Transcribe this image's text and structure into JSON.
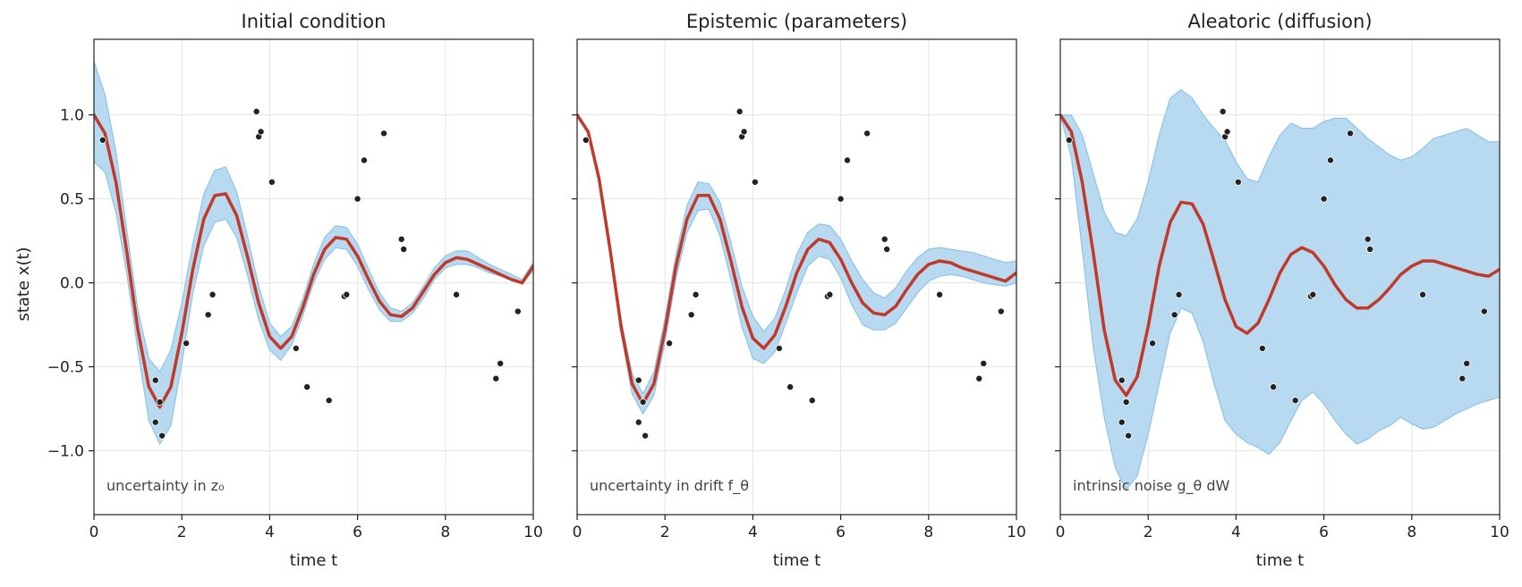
{
  "figure": {
    "ylabel": "state x(t)",
    "band_color": "#b8daf0",
    "band_edge_color": "#8ec3e8",
    "mean_color": "#c0392b",
    "point_color": "#222222"
  },
  "chart_data": [
    {
      "type": "line",
      "title": "Initial condition",
      "xlabel": "time t",
      "ylabel": "state x(t)",
      "xlim": [
        0,
        10
      ],
      "ylim": [
        -1.38,
        1.45
      ],
      "xticks": [
        0,
        2,
        4,
        6,
        8,
        10
      ],
      "yticks": [
        -1.0,
        -0.5,
        0.0,
        0.5,
        1.0
      ],
      "grid": true,
      "annotation": "uncertainty in z₀",
      "series": [
        {
          "kind": "mean",
          "x": [
            0,
            0.25,
            0.5,
            0.75,
            1,
            1.25,
            1.5,
            1.75,
            2,
            2.25,
            2.5,
            2.75,
            3,
            3.25,
            3.5,
            3.75,
            4,
            4.25,
            4.5,
            4.75,
            5,
            5.25,
            5.5,
            5.75,
            6,
            6.25,
            6.5,
            6.75,
            7,
            7.25,
            7.5,
            7.75,
            8,
            8.25,
            8.5,
            8.75,
            9,
            9.25,
            9.5,
            9.75,
            10
          ],
          "y": [
            1.0,
            0.89,
            0.6,
            0.18,
            -0.28,
            -0.62,
            -0.74,
            -0.62,
            -0.3,
            0.08,
            0.38,
            0.52,
            0.53,
            0.4,
            0.15,
            -0.12,
            -0.32,
            -0.39,
            -0.32,
            -0.15,
            0.05,
            0.2,
            0.27,
            0.26,
            0.16,
            0.02,
            -0.11,
            -0.19,
            -0.2,
            -0.15,
            -0.05,
            0.05,
            0.12,
            0.15,
            0.14,
            0.11,
            0.08,
            0.05,
            0.02,
            0.0,
            0.1
          ]
        },
        {
          "kind": "band",
          "x": [
            0,
            0.25,
            0.5,
            0.75,
            1,
            1.25,
            1.5,
            1.75,
            2,
            2.25,
            2.5,
            2.75,
            3,
            3.25,
            3.5,
            3.75,
            4,
            4.25,
            4.5,
            4.75,
            5,
            5.25,
            5.5,
            5.75,
            6,
            6.25,
            6.5,
            6.75,
            7,
            7.25,
            7.5,
            7.75,
            8,
            8.25,
            8.5,
            8.75,
            9,
            9.25,
            9.5,
            9.75,
            10
          ],
          "lower": [
            0.72,
            0.66,
            0.42,
            0.05,
            -0.4,
            -0.82,
            -0.96,
            -0.85,
            -0.48,
            -0.06,
            0.22,
            0.36,
            0.38,
            0.27,
            0.04,
            -0.22,
            -0.4,
            -0.46,
            -0.37,
            -0.2,
            0.0,
            0.14,
            0.21,
            0.2,
            0.1,
            -0.04,
            -0.16,
            -0.23,
            -0.23,
            -0.18,
            -0.09,
            0.02,
            0.09,
            0.11,
            0.11,
            0.09,
            0.06,
            0.04,
            0.02,
            0.0,
            0.07
          ],
          "upper": [
            1.32,
            1.12,
            0.78,
            0.31,
            -0.16,
            -0.45,
            -0.53,
            -0.4,
            -0.12,
            0.23,
            0.53,
            0.67,
            0.69,
            0.54,
            0.27,
            -0.02,
            -0.24,
            -0.32,
            -0.26,
            -0.1,
            0.11,
            0.27,
            0.34,
            0.33,
            0.23,
            0.08,
            -0.06,
            -0.15,
            -0.17,
            -0.12,
            -0.02,
            0.09,
            0.16,
            0.19,
            0.19,
            0.15,
            0.11,
            0.08,
            0.05,
            0.02,
            0.12
          ]
        },
        {
          "kind": "points",
          "x": [
            0.2,
            1.4,
            1.5,
            1.4,
            1.55,
            2.1,
            2.6,
            2.7,
            3.7,
            3.75,
            3.8,
            4.05,
            4.6,
            4.85,
            5.35,
            5.7,
            5.75,
            6.0,
            6.15,
            6.6,
            7.0,
            7.05,
            8.25,
            9.15,
            9.25,
            9.65
          ],
          "y": [
            0.85,
            -0.58,
            -0.71,
            -0.83,
            -0.91,
            -0.36,
            -0.19,
            -0.07,
            1.02,
            0.87,
            0.9,
            0.6,
            -0.39,
            -0.62,
            -0.7,
            -0.08,
            -0.07,
            0.5,
            0.73,
            0.89,
            0.26,
            0.2,
            -0.07,
            -0.57,
            -0.48,
            -0.17
          ]
        }
      ]
    },
    {
      "type": "line",
      "title": "Epistemic (parameters)",
      "xlabel": "time t",
      "ylabel": "",
      "xlim": [
        0,
        10
      ],
      "ylim": [
        -1.38,
        1.45
      ],
      "xticks": [
        0,
        2,
        4,
        6,
        8,
        10
      ],
      "yticks": [
        -1.0,
        -0.5,
        0.0,
        0.5,
        1.0
      ],
      "grid": true,
      "annotation": "uncertainty in drift f_θ",
      "series": [
        {
          "kind": "mean",
          "x": [
            0,
            0.25,
            0.5,
            0.75,
            1,
            1.25,
            1.5,
            1.75,
            2,
            2.25,
            2.5,
            2.75,
            3,
            3.25,
            3.5,
            3.75,
            4,
            4.25,
            4.5,
            4.75,
            5,
            5.25,
            5.5,
            5.75,
            6,
            6.25,
            6.5,
            6.75,
            7,
            7.25,
            7.5,
            7.75,
            8,
            8.25,
            8.5,
            8.75,
            9,
            9.25,
            9.5,
            9.75,
            10
          ],
          "y": [
            1.0,
            0.9,
            0.62,
            0.2,
            -0.26,
            -0.6,
            -0.72,
            -0.6,
            -0.28,
            0.1,
            0.38,
            0.52,
            0.52,
            0.38,
            0.13,
            -0.14,
            -0.33,
            -0.39,
            -0.31,
            -0.14,
            0.06,
            0.2,
            0.26,
            0.24,
            0.14,
            0.0,
            -0.12,
            -0.18,
            -0.19,
            -0.14,
            -0.04,
            0.05,
            0.11,
            0.13,
            0.12,
            0.09,
            0.07,
            0.05,
            0.03,
            0.01,
            0.06
          ]
        },
        {
          "kind": "band",
          "x": [
            0,
            0.25,
            0.5,
            0.75,
            1,
            1.25,
            1.5,
            1.75,
            2,
            2.25,
            2.5,
            2.75,
            3,
            3.25,
            3.5,
            3.75,
            4,
            4.25,
            4.5,
            4.75,
            5,
            5.25,
            5.5,
            5.75,
            6,
            6.25,
            6.5,
            6.75,
            7,
            7.25,
            7.5,
            7.75,
            8,
            8.25,
            8.5,
            8.75,
            9,
            9.25,
            9.5,
            9.75,
            10
          ],
          "lower": [
            1.0,
            0.89,
            0.6,
            0.17,
            -0.3,
            -0.66,
            -0.78,
            -0.67,
            -0.35,
            0.03,
            0.3,
            0.43,
            0.44,
            0.28,
            0.02,
            -0.26,
            -0.45,
            -0.48,
            -0.41,
            -0.24,
            -0.06,
            0.1,
            0.16,
            0.14,
            0.03,
            -0.13,
            -0.25,
            -0.28,
            -0.28,
            -0.24,
            -0.15,
            -0.06,
            0.01,
            0.04,
            0.05,
            0.04,
            0.02,
            0.0,
            -0.01,
            -0.02,
            0.0
          ],
          "upper": [
            1.0,
            0.91,
            0.64,
            0.23,
            -0.22,
            -0.54,
            -0.66,
            -0.53,
            -0.21,
            0.17,
            0.46,
            0.6,
            0.59,
            0.48,
            0.24,
            -0.02,
            -0.2,
            -0.29,
            -0.21,
            -0.04,
            0.17,
            0.3,
            0.35,
            0.34,
            0.26,
            0.13,
            0.02,
            -0.06,
            -0.09,
            -0.03,
            0.07,
            0.15,
            0.2,
            0.21,
            0.2,
            0.19,
            0.18,
            0.16,
            0.14,
            0.12,
            0.13
          ]
        },
        {
          "kind": "points",
          "x": [
            0.2,
            1.4,
            1.5,
            1.4,
            1.55,
            2.1,
            2.6,
            2.7,
            3.7,
            3.75,
            3.8,
            4.05,
            4.6,
            4.85,
            5.35,
            5.7,
            5.75,
            6.0,
            6.15,
            6.6,
            7.0,
            7.05,
            8.25,
            9.15,
            9.25,
            9.65
          ],
          "y": [
            0.85,
            -0.58,
            -0.71,
            -0.83,
            -0.91,
            -0.36,
            -0.19,
            -0.07,
            1.02,
            0.87,
            0.9,
            0.6,
            -0.39,
            -0.62,
            -0.7,
            -0.08,
            -0.07,
            0.5,
            0.73,
            0.89,
            0.26,
            0.2,
            -0.07,
            -0.57,
            -0.48,
            -0.17
          ]
        }
      ]
    },
    {
      "type": "line",
      "title": "Aleatoric (diffusion)",
      "xlabel": "time t",
      "ylabel": "",
      "xlim": [
        0,
        10
      ],
      "ylim": [
        -1.38,
        1.45
      ],
      "xticks": [
        0,
        2,
        4,
        6,
        8,
        10
      ],
      "yticks": [
        -1.0,
        -0.5,
        0.0,
        0.5,
        1.0
      ],
      "grid": true,
      "annotation": "intrinsic noise g_θ dW",
      "series": [
        {
          "kind": "mean",
          "x": [
            0,
            0.25,
            0.5,
            0.75,
            1,
            1.25,
            1.5,
            1.75,
            2,
            2.25,
            2.5,
            2.75,
            3,
            3.25,
            3.5,
            3.75,
            4,
            4.25,
            4.5,
            4.75,
            5,
            5.25,
            5.5,
            5.75,
            6,
            6.25,
            6.5,
            6.75,
            7,
            7.25,
            7.5,
            7.75,
            8,
            8.25,
            8.5,
            8.75,
            9,
            9.25,
            9.5,
            9.75,
            10
          ],
          "y": [
            1.0,
            0.9,
            0.6,
            0.18,
            -0.28,
            -0.58,
            -0.67,
            -0.56,
            -0.26,
            0.1,
            0.36,
            0.48,
            0.47,
            0.35,
            0.13,
            -0.1,
            -0.26,
            -0.3,
            -0.24,
            -0.1,
            0.06,
            0.17,
            0.21,
            0.18,
            0.1,
            -0.01,
            -0.1,
            -0.15,
            -0.15,
            -0.1,
            -0.03,
            0.05,
            0.1,
            0.13,
            0.13,
            0.11,
            0.09,
            0.07,
            0.05,
            0.04,
            0.08
          ]
        },
        {
          "kind": "band",
          "x": [
            0,
            0.25,
            0.5,
            0.75,
            1,
            1.25,
            1.5,
            1.75,
            2,
            2.25,
            2.5,
            2.75,
            3,
            3.25,
            3.5,
            3.75,
            4,
            4.25,
            4.5,
            4.75,
            5,
            5.25,
            5.5,
            5.75,
            6,
            6.25,
            6.5,
            6.75,
            7,
            7.25,
            7.5,
            7.75,
            8,
            8.25,
            8.5,
            8.75,
            9,
            9.25,
            9.5,
            9.75,
            10
          ],
          "lower": [
            1.0,
            0.75,
            0.2,
            -0.38,
            -0.8,
            -1.1,
            -1.23,
            -1.15,
            -0.9,
            -0.6,
            -0.3,
            -0.15,
            -0.18,
            -0.35,
            -0.6,
            -0.82,
            -0.9,
            -0.95,
            -0.98,
            -1.02,
            -0.95,
            -0.82,
            -0.7,
            -0.65,
            -0.72,
            -0.82,
            -0.9,
            -0.96,
            -0.93,
            -0.88,
            -0.85,
            -0.8,
            -0.84,
            -0.87,
            -0.86,
            -0.82,
            -0.78,
            -0.75,
            -0.72,
            -0.7,
            -0.68
          ],
          "upper": [
            1.0,
            1.0,
            0.88,
            0.65,
            0.42,
            0.3,
            0.28,
            0.38,
            0.6,
            0.88,
            1.1,
            1.15,
            1.1,
            1.0,
            0.92,
            0.85,
            0.72,
            0.62,
            0.6,
            0.75,
            0.88,
            0.95,
            0.92,
            0.92,
            0.96,
            0.98,
            0.98,
            0.92,
            0.86,
            0.81,
            0.76,
            0.73,
            0.75,
            0.8,
            0.86,
            0.88,
            0.9,
            0.92,
            0.88,
            0.84,
            0.84
          ]
        },
        {
          "kind": "points",
          "x": [
            0.2,
            1.4,
            1.5,
            1.4,
            1.55,
            2.1,
            2.6,
            2.7,
            3.7,
            3.75,
            3.8,
            4.05,
            4.6,
            4.85,
            5.35,
            5.7,
            5.75,
            6.0,
            6.15,
            6.6,
            7.0,
            7.05,
            8.25,
            9.15,
            9.25,
            9.65
          ],
          "y": [
            0.85,
            -0.58,
            -0.71,
            -0.83,
            -0.91,
            -0.36,
            -0.19,
            -0.07,
            1.02,
            0.87,
            0.9,
            0.6,
            -0.39,
            -0.62,
            -0.7,
            -0.08,
            -0.07,
            0.5,
            0.73,
            0.89,
            0.26,
            0.2,
            -0.07,
            -0.57,
            -0.48,
            -0.17
          ]
        }
      ]
    }
  ]
}
